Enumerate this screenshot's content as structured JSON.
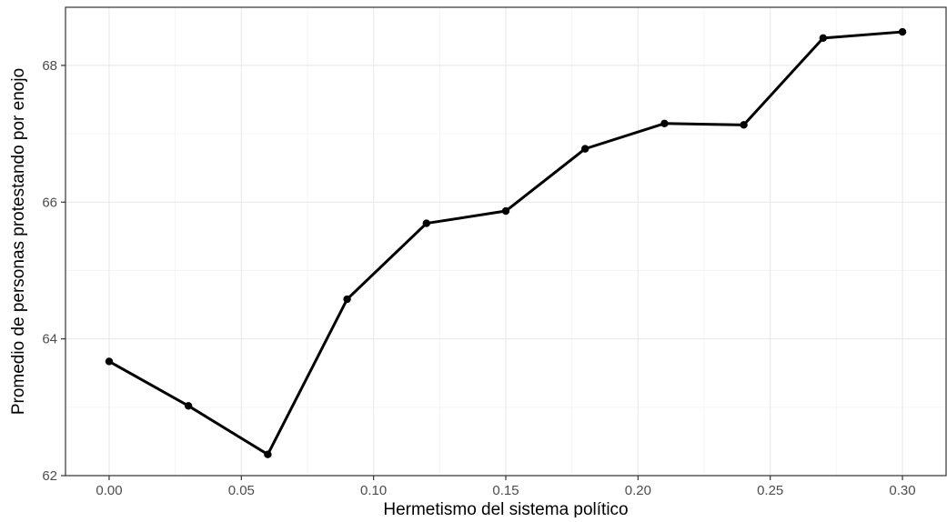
{
  "chart_data": {
    "type": "line",
    "title": "",
    "xlabel": "Hermetismo del sistema político",
    "ylabel": "Promedio de personas protestando por enojo",
    "xlim": [
      -0.0165,
      0.3165
    ],
    "ylim": [
      62.0,
      68.85
    ],
    "x_ticks": [
      0.0,
      0.05,
      0.1,
      0.15,
      0.2,
      0.25,
      0.3
    ],
    "x_tick_labels": [
      "0.00",
      "0.05",
      "0.10",
      "0.15",
      "0.20",
      "0.25",
      "0.30"
    ],
    "y_ticks": [
      62,
      64,
      66,
      68
    ],
    "y_tick_labels": [
      "62",
      "64",
      "66",
      "68"
    ],
    "grid": true,
    "legend": "none",
    "series": [
      {
        "x": [
          0.0,
          0.03,
          0.06,
          0.09,
          0.12,
          0.15,
          0.18,
          0.21,
          0.24,
          0.27,
          0.3
        ],
        "y": [
          63.67,
          63.02,
          62.31,
          64.58,
          65.69,
          65.87,
          66.78,
          67.15,
          67.13,
          68.4,
          68.49
        ]
      }
    ],
    "colors": {
      "line": "#000000",
      "points": "#000000",
      "grid": "#ebebeb",
      "background": "#ffffff"
    }
  }
}
